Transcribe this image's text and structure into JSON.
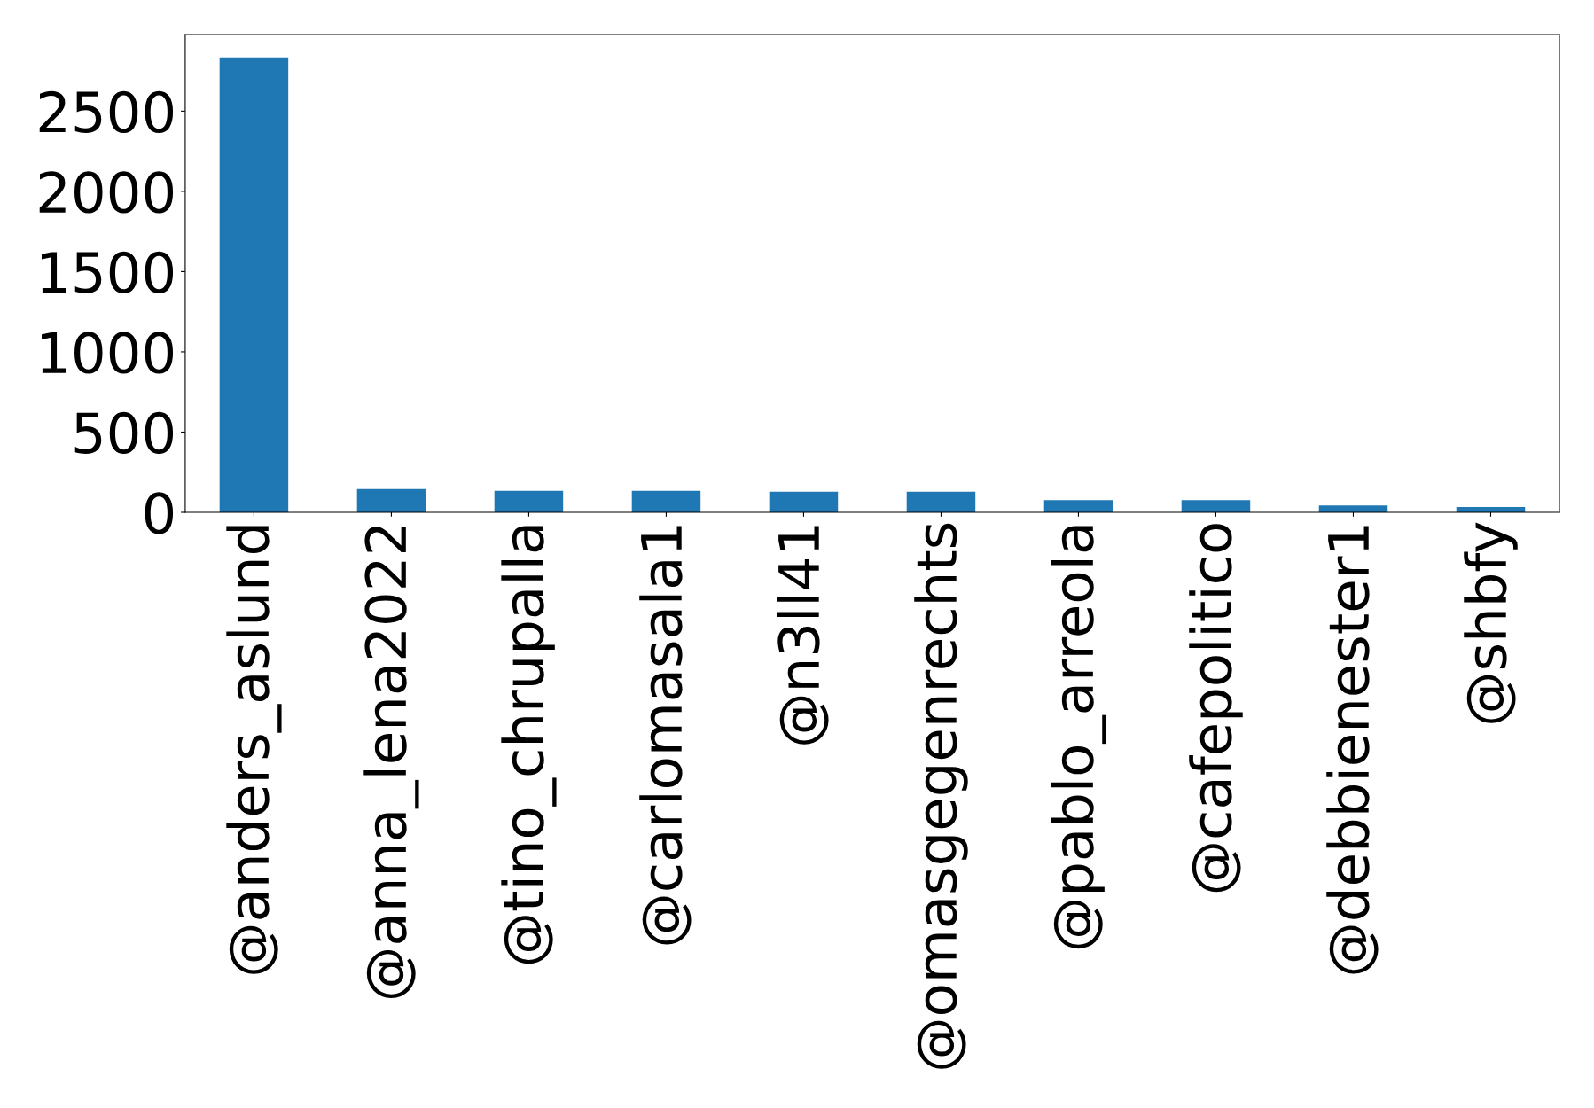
{
  "chart_data": {
    "type": "bar",
    "categories": [
      "@anders_aslund",
      "@anna_lena2022",
      "@tino_chrupalla",
      "@carlomasala1",
      "@n3ll41",
      "@omasgegenrechts",
      "@pablo_arreola",
      "@cafepolitico",
      "@debbienester1",
      "@shbfy"
    ],
    "values": [
      2835,
      145,
      134,
      134,
      129,
      129,
      76,
      76,
      43,
      33
    ],
    "color": "#1f77b4",
    "ylim": [
      0,
      2977
    ],
    "yticks": [
      0,
      500,
      1000,
      1500,
      2000,
      2500
    ],
    "grid": false,
    "legend": false
  }
}
